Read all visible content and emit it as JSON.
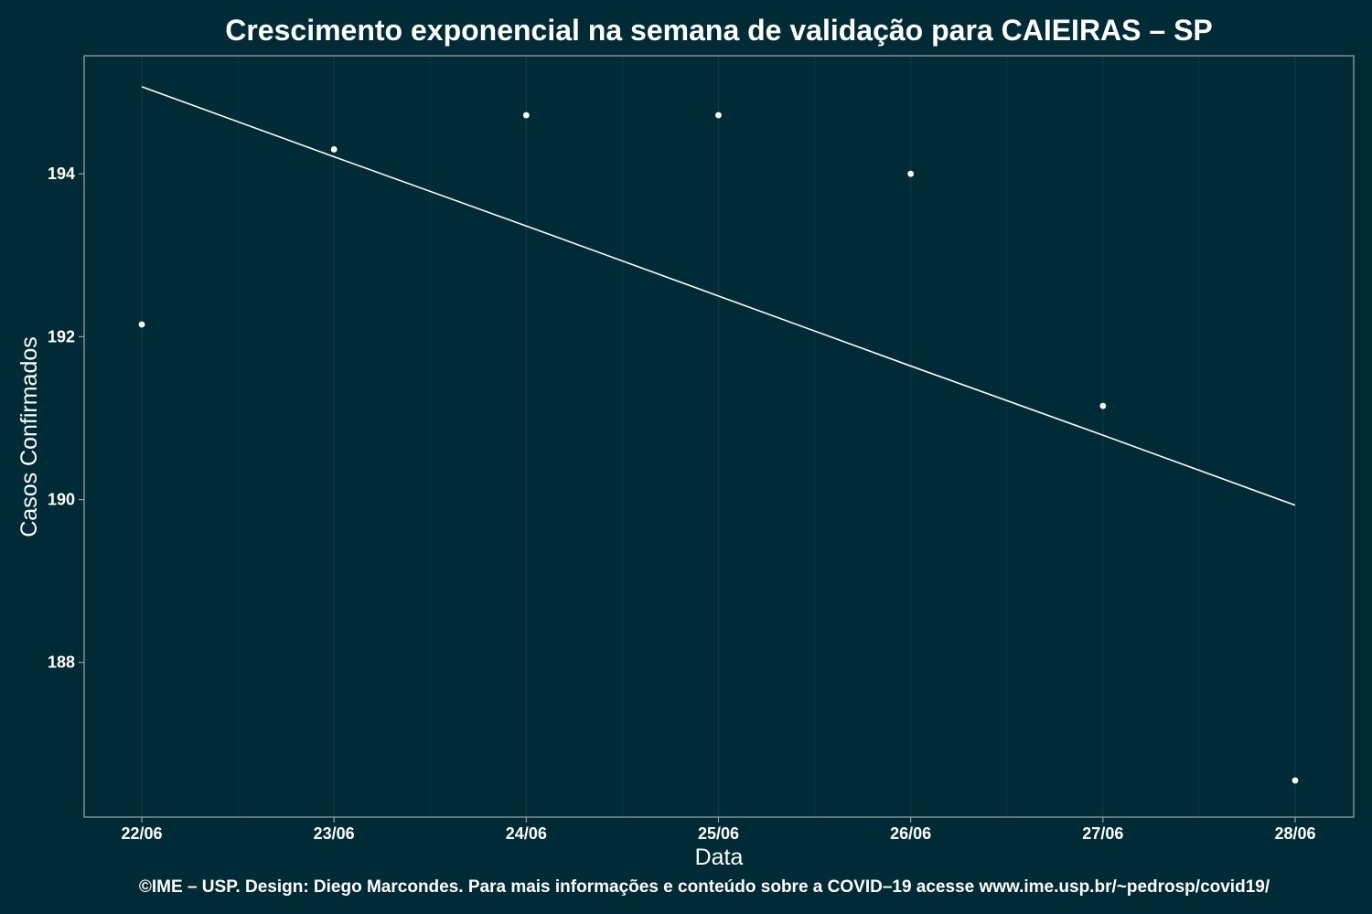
{
  "chart_data": {
    "type": "line",
    "title": "Crescimento exponencial na semana de validação para CAIEIRAS – SP",
    "xlabel": "Data",
    "ylabel": "Casos Confirmados",
    "categories": [
      "22/06",
      "23/06",
      "24/06",
      "25/06",
      "26/06",
      "27/06",
      "28/06"
    ],
    "y_ticks": [
      188,
      190,
      192,
      194
    ],
    "ylim": [
      186.1,
      195.45
    ],
    "grid": "vertical",
    "legend": "none",
    "series": [
      {
        "style": "points",
        "values": [
          192.15,
          194.3,
          194.72,
          194.72,
          194.0,
          191.15,
          186.55
        ]
      },
      {
        "style": "line",
        "values": [
          195.07,
          194.21,
          193.36,
          192.5,
          191.64,
          190.79,
          189.93
        ]
      }
    ],
    "caption": "©IME – USP. Design: Diego Marcondes. Para mais informações e conteúdo sobre a COVID–19 acesse www.ime.usp.br/~pedrosp/covid19/"
  },
  "colors": {
    "background": "#002b36",
    "panel_border": "#93a1a1",
    "grid": "#0d3a46",
    "marks": "#ffffff"
  }
}
